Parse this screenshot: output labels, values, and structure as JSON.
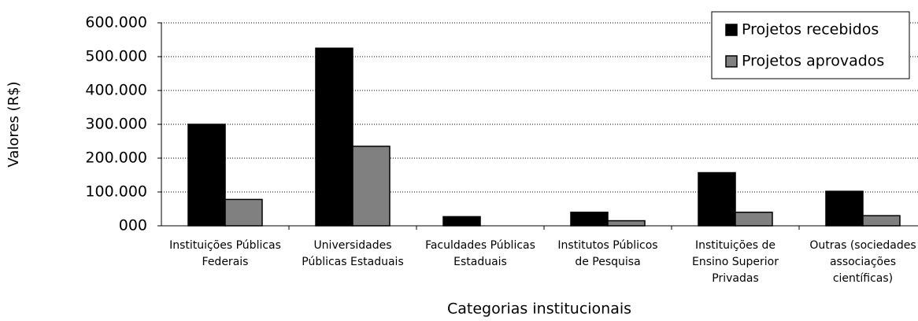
{
  "chart_data": {
    "type": "bar",
    "categories": [
      [
        "Instituições Públicas",
        "Federais"
      ],
      [
        "Universidades",
        "Públicas Estaduais"
      ],
      [
        "Faculdades Públicas",
        "Estaduais"
      ],
      [
        "Institutos Públicos",
        "de Pesquisa"
      ],
      [
        "Instituições de",
        "Ensino Superior",
        "Privadas"
      ],
      [
        "Outras (sociedades",
        "associações",
        "científicas)"
      ]
    ],
    "series": [
      {
        "name": "Projetos recebidos",
        "color": "#000000",
        "values": [
          300000,
          525000,
          27000,
          40000,
          157000,
          102000
        ]
      },
      {
        "name": "Projetos aprovados",
        "color": "#808080",
        "values": [
          78000,
          235000,
          0,
          15000,
          40000,
          30000
        ]
      }
    ],
    "ylabel": "Valores (R$)",
    "xlabel": "Categorias institucionais",
    "ylim": [
      0,
      600000
    ],
    "yticks": [
      {
        "value": 0,
        "label": "000"
      },
      {
        "value": 100000,
        "label": "100.000"
      },
      {
        "value": 200000,
        "label": "200.000"
      },
      {
        "value": 300000,
        "label": "300.000"
      },
      {
        "value": 400000,
        "label": "400.000"
      },
      {
        "value": 500000,
        "label": "500.000"
      },
      {
        "value": 600000,
        "label": "600.000"
      }
    ],
    "grid": true,
    "legend": "upper right"
  }
}
